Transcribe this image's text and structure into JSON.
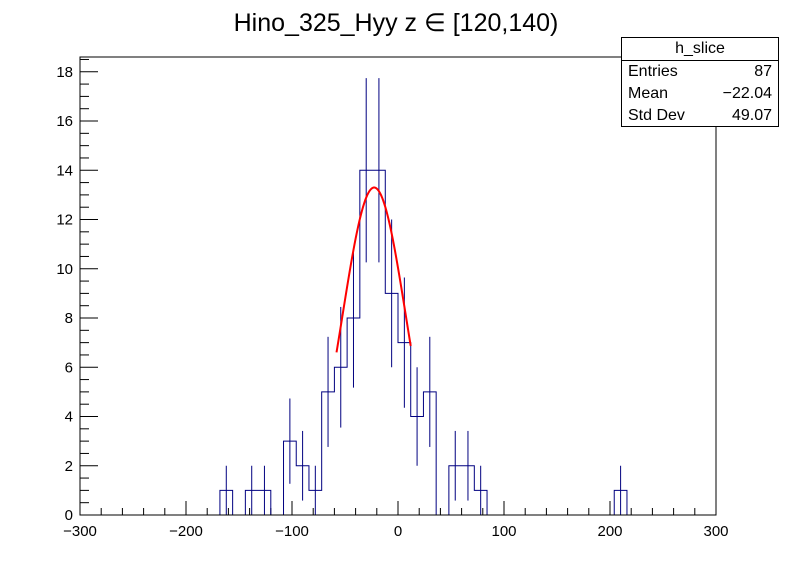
{
  "chart_data": {
    "type": "bar",
    "title": "Hino_325_Hyy z  ∈ [120,140)",
    "xlabel": "",
    "ylabel": "",
    "xlim": [
      -300,
      300
    ],
    "ylim": [
      0,
      18.6
    ],
    "bin_width": 12,
    "x_ticks": [
      -300,
      -200,
      -100,
      0,
      100,
      200,
      300
    ],
    "y_ticks": [
      0,
      2,
      4,
      6,
      8,
      10,
      12,
      14,
      16,
      18
    ],
    "histogram_color": "#000080",
    "fit_color": "#ff0000",
    "bins": [
      {
        "x": -162,
        "value": 1
      },
      {
        "x": -138,
        "value": 1
      },
      {
        "x": -126,
        "value": 1
      },
      {
        "x": -102,
        "value": 3
      },
      {
        "x": -90,
        "value": 2
      },
      {
        "x": -78,
        "value": 1
      },
      {
        "x": -66,
        "value": 5
      },
      {
        "x": -54,
        "value": 6
      },
      {
        "x": -42,
        "value": 8
      },
      {
        "x": -30,
        "value": 14
      },
      {
        "x": -18,
        "value": 14
      },
      {
        "x": -6,
        "value": 9
      },
      {
        "x": 6,
        "value": 7
      },
      {
        "x": 18,
        "value": 4
      },
      {
        "x": 30,
        "value": 5
      },
      {
        "x": 54,
        "value": 2
      },
      {
        "x": 66,
        "value": 2
      },
      {
        "x": 78,
        "value": 1
      },
      {
        "x": 210,
        "value": 1
      }
    ],
    "fit": {
      "type": "gaussian",
      "x_range": [
        -58,
        12
      ],
      "peak": 13.3,
      "mean": -22.5,
      "sigma": 30
    }
  },
  "stats": {
    "name": "h_slice",
    "rows": [
      {
        "label": "Entries",
        "value": "87"
      },
      {
        "label": "Mean",
        "value": "−22.04"
      },
      {
        "label": "Std Dev",
        "value": "49.07"
      }
    ]
  }
}
